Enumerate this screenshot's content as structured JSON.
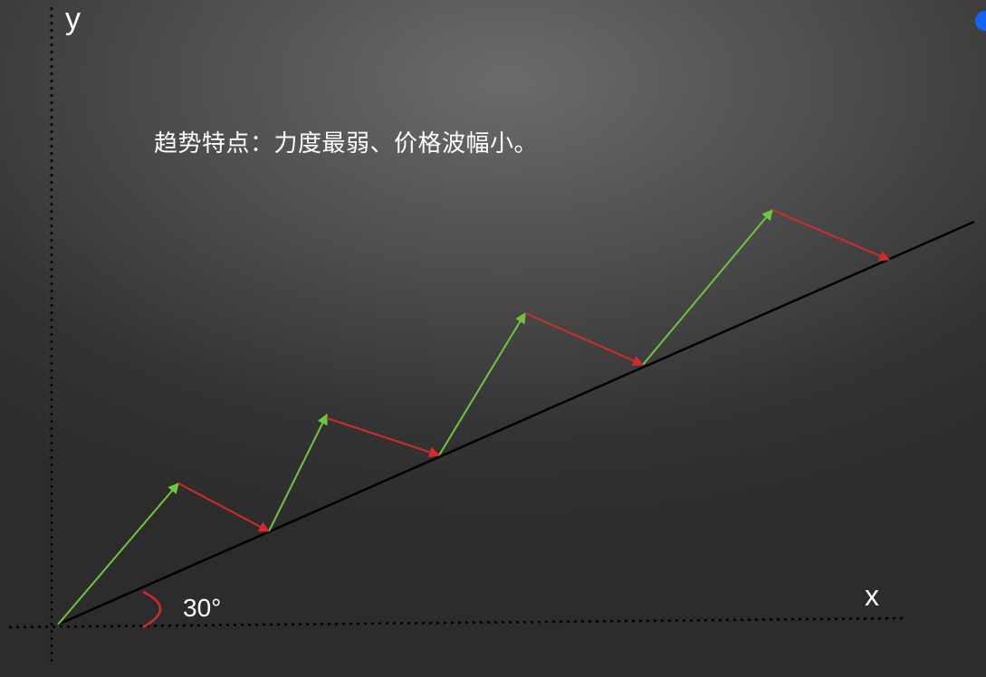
{
  "axes": {
    "y_label": "y",
    "x_label": "x"
  },
  "angle": {
    "label": "30°",
    "color": "#d42a2a"
  },
  "caption": "趋势特点：力度最弱、价格波幅小。",
  "colors": {
    "up_arrow": "#6dc83c",
    "down_arrow": "#d42a2a",
    "trend_line": "#000000",
    "axis": "#000000",
    "text": "#ffffff",
    "dot": "#1464f4"
  },
  "icons": {
    "corner_dot": "blue-dot-icon"
  }
}
